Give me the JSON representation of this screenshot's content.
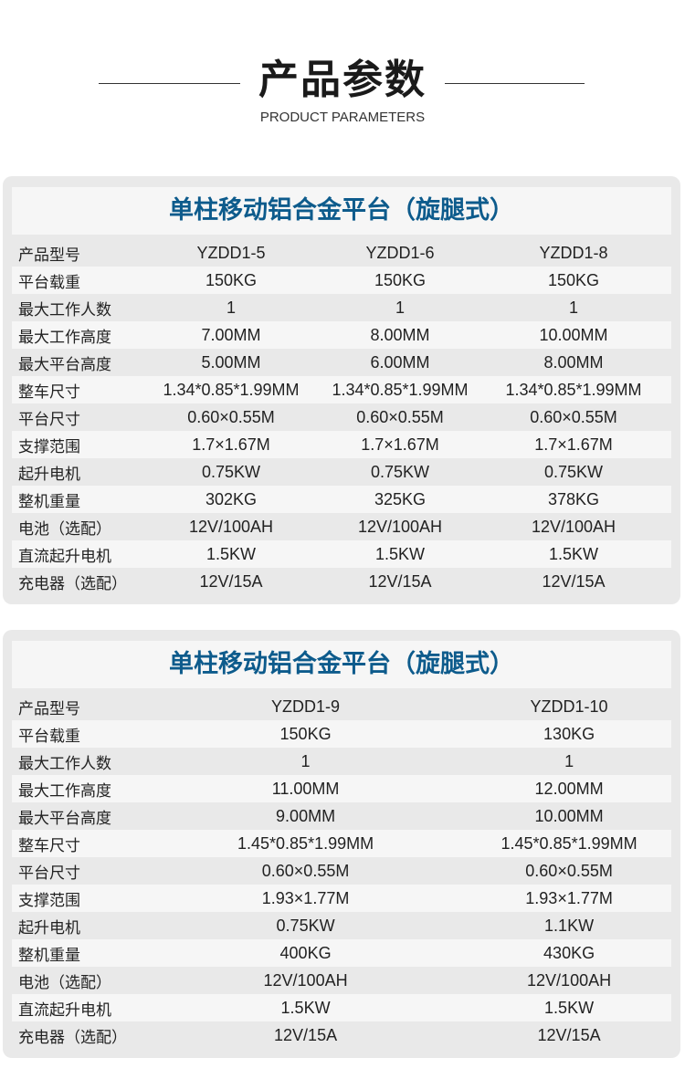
{
  "header": {
    "title": "产品参数",
    "subtitle": "PRODUCT PARAMETERS"
  },
  "colors": {
    "title_blue": "#0d5b8c",
    "card_bg": "#e9e9e9",
    "row_light": "#f6f6f6"
  },
  "tables": [
    {
      "title": "单柱移动铝合金平台（旋腿式）",
      "rows": [
        [
          "产品型号",
          "YZDD1-5",
          "YZDD1-6",
          "YZDD1-8"
        ],
        [
          "平台载重",
          "150KG",
          "150KG",
          "150KG"
        ],
        [
          "最大工作人数",
          "1",
          "1",
          "1"
        ],
        [
          "最大工作高度",
          "7.00MM",
          "8.00MM",
          "10.00MM"
        ],
        [
          "最大平台高度",
          "5.00MM",
          "6.00MM",
          "8.00MM"
        ],
        [
          "整车尺寸",
          "1.34*0.85*1.99MM",
          "1.34*0.85*1.99MM",
          "1.34*0.85*1.99MM"
        ],
        [
          "平台尺寸",
          "0.60×0.55M",
          "0.60×0.55M",
          "0.60×0.55M"
        ],
        [
          "支撑范围",
          "1.7×1.67M",
          "1.7×1.67M",
          "1.7×1.67M"
        ],
        [
          "起升电机",
          "0.75KW",
          "0.75KW",
          "0.75KW"
        ],
        [
          "整机重量",
          "302KG",
          "325KG",
          "378KG"
        ],
        [
          "电池（选配）",
          "12V/100AH",
          "12V/100AH",
          "12V/100AH"
        ],
        [
          "直流起升电机",
          "1.5KW",
          "1.5KW",
          "1.5KW"
        ],
        [
          "充电器（选配）",
          "12V/15A",
          "12V/15A",
          "12V/15A"
        ]
      ]
    },
    {
      "title": "单柱移动铝合金平台（旋腿式）",
      "rows": [
        [
          "产品型号",
          "YZDD1-9",
          "YZDD1-10"
        ],
        [
          "平台载重",
          "150KG",
          "130KG"
        ],
        [
          "最大工作人数",
          "1",
          "1"
        ],
        [
          "最大工作高度",
          "11.00MM",
          "12.00MM"
        ],
        [
          "最大平台高度",
          "9.00MM",
          "10.00MM"
        ],
        [
          "整车尺寸",
          "1.45*0.85*1.99MM",
          "1.45*0.85*1.99MM"
        ],
        [
          "平台尺寸",
          "0.60×0.55M",
          "0.60×0.55M"
        ],
        [
          "支撑范围",
          "1.93×1.77M",
          "1.93×1.77M"
        ],
        [
          "起升电机",
          "0.75KW",
          "1.1KW"
        ],
        [
          "整机重量",
          "400KG",
          "430KG"
        ],
        [
          "电池（选配）",
          "12V/100AH",
          "12V/100AH"
        ],
        [
          "直流起升电机",
          "1.5KW",
          "1.5KW"
        ],
        [
          "充电器（选配）",
          "12V/15A",
          "12V/15A"
        ]
      ]
    }
  ]
}
